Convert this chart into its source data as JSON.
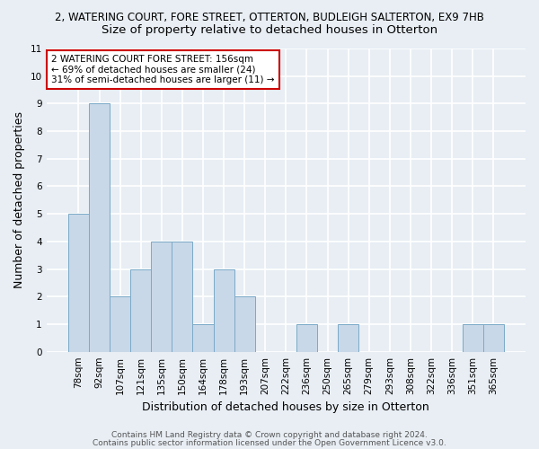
{
  "title_line1": "2, WATERING COURT, FORE STREET, OTTERTON, BUDLEIGH SALTERTON, EX9 7HB",
  "title_line2": "Size of property relative to detached houses in Otterton",
  "xlabel": "Distribution of detached houses by size in Otterton",
  "ylabel": "Number of detached properties",
  "categories": [
    "78sqm",
    "92sqm",
    "107sqm",
    "121sqm",
    "135sqm",
    "150sqm",
    "164sqm",
    "178sqm",
    "193sqm",
    "207sqm",
    "222sqm",
    "236sqm",
    "250sqm",
    "265sqm",
    "279sqm",
    "293sqm",
    "308sqm",
    "322sqm",
    "336sqm",
    "351sqm",
    "365sqm"
  ],
  "values": [
    5,
    9,
    2,
    3,
    4,
    4,
    1,
    3,
    2,
    0,
    0,
    1,
    0,
    1,
    0,
    0,
    0,
    0,
    0,
    1,
    1
  ],
  "bar_color": "#c8d8e8",
  "bar_edge_color": "#7aaac8",
  "annotation_box_text": "2 WATERING COURT FORE STREET: 156sqm\n← 69% of detached houses are smaller (24)\n31% of semi-detached houses are larger (11) →",
  "annotation_box_facecolor": "#ffffff",
  "annotation_box_edgecolor": "#cc0000",
  "footer_line1": "Contains HM Land Registry data © Crown copyright and database right 2024.",
  "footer_line2": "Contains public sector information licensed under the Open Government Licence v3.0.",
  "ylim": [
    0,
    11
  ],
  "yticks": [
    0,
    1,
    2,
    3,
    4,
    5,
    6,
    7,
    8,
    9,
    10,
    11
  ],
  "bg_color": "#e8eef4",
  "plot_bg_color": "#e8eef4",
  "grid_color": "#ffffff",
  "title_fontsize": 8.5,
  "subtitle_fontsize": 9.5,
  "axis_label_fontsize": 9,
  "tick_fontsize": 7.5,
  "annotation_fontsize": 7.5,
  "footer_fontsize": 6.5
}
